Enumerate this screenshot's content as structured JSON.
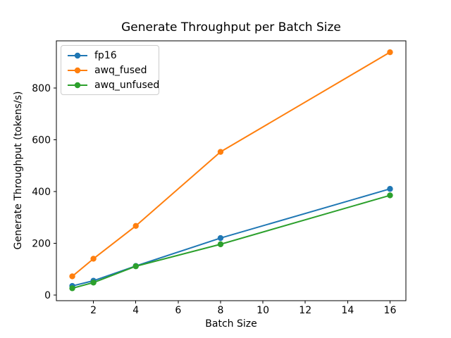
{
  "chart_data": {
    "type": "line",
    "title": "Generate Throughput per Batch Size",
    "xlabel": "Batch Size",
    "ylabel": "Generate Throughput (tokens/s)",
    "x": [
      1,
      2,
      4,
      8,
      16
    ],
    "series": [
      {
        "name": "fp16",
        "color": "#1f77b4",
        "values": [
          35,
          55,
          112,
          220,
          410
        ]
      },
      {
        "name": "awq_fused",
        "color": "#ff7f0e",
        "values": [
          72,
          140,
          267,
          553,
          938
        ]
      },
      {
        "name": "awq_unfused",
        "color": "#2ca02c",
        "values": [
          26,
          48,
          111,
          196,
          385
        ]
      }
    ],
    "xticks": [
      2,
      4,
      6,
      8,
      10,
      12,
      14,
      16
    ],
    "yticks": [
      0,
      200,
      400,
      600,
      800
    ],
    "xlim": [
      0.25,
      16.75
    ],
    "ylim": [
      -22,
      982
    ],
    "grid": false,
    "legend_position": "upper left",
    "marker": "o",
    "background_color": "#ffffff",
    "axis_color": "#000000"
  }
}
